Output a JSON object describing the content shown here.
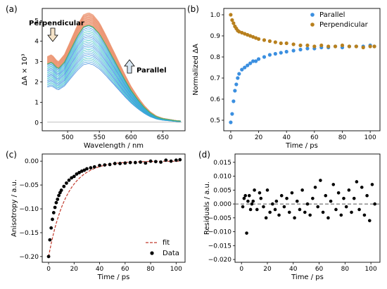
{
  "chart_data": [
    {
      "panel": "(a)",
      "type": "line",
      "xlabel": "Wavelength / nm",
      "ylabel": "ΔA × 10³",
      "xlim": [
        460,
        685
      ],
      "ylim": [
        -0.4,
        5.6
      ],
      "xticks": [
        500,
        550,
        600,
        650
      ],
      "yticks": [
        0,
        1,
        2,
        3,
        4,
        5
      ],
      "peak_wavelength": 533,
      "spectrum_wavelengths": [
        468,
        475,
        485,
        495,
        505,
        515,
        525,
        533,
        540,
        550,
        560,
        570,
        580,
        590,
        600,
        610,
        620,
        630,
        640,
        650,
        660,
        670,
        680
      ],
      "spectrum_shape": [
        0.6,
        0.62,
        0.55,
        0.62,
        0.75,
        0.88,
        0.98,
        1.0,
        0.98,
        0.91,
        0.8,
        0.68,
        0.56,
        0.44,
        0.33,
        0.24,
        0.16,
        0.1,
        0.06,
        0.04,
        0.03,
        0.02,
        0.015
      ],
      "series": [
        {
          "name": "Perpendicular",
          "color": "#E07A2B",
          "peak_start": 5.4,
          "peak_end": 4.8
        },
        {
          "name": "Parallel",
          "color": "#3B8FE0",
          "peak_start": 2.9,
          "peak_end": 4.75
        }
      ],
      "annotations": [
        "Perpendicular",
        "Parallel"
      ]
    },
    {
      "panel": "(b)",
      "type": "scatter",
      "xlabel": "Time / ps",
      "ylabel": "Normalized ΔA",
      "xlim": [
        -5,
        107
      ],
      "ylim": [
        0.45,
        1.03
      ],
      "xticks": [
        0,
        20,
        40,
        60,
        80,
        100
      ],
      "yticks": [
        0.5,
        0.6,
        0.7,
        0.8,
        0.9,
        1.0
      ],
      "legend_position": "top-right",
      "x": [
        0,
        1,
        2,
        3,
        4,
        5,
        6,
        8,
        10,
        12,
        14,
        16,
        18,
        20,
        24,
        28,
        32,
        36,
        40,
        45,
        50,
        55,
        60,
        65,
        70,
        75,
        80,
        85,
        90,
        95,
        100,
        103
      ],
      "series": [
        {
          "name": "Parallel",
          "color": "#3B8FE0",
          "values": [
            0.49,
            0.53,
            0.59,
            0.64,
            0.67,
            0.7,
            0.72,
            0.74,
            0.75,
            0.76,
            0.77,
            0.78,
            0.78,
            0.79,
            0.8,
            0.81,
            0.815,
            0.82,
            0.825,
            0.83,
            0.835,
            0.84,
            0.84,
            0.845,
            0.845,
            0.85,
            0.845,
            0.85,
            0.85,
            0.85,
            0.855,
            0.85
          ]
        },
        {
          "name": "Perpendicular",
          "color": "#B8801E",
          "values": [
            1.0,
            0.975,
            0.96,
            0.945,
            0.935,
            0.925,
            0.92,
            0.915,
            0.91,
            0.905,
            0.9,
            0.895,
            0.89,
            0.885,
            0.88,
            0.875,
            0.87,
            0.865,
            0.865,
            0.86,
            0.855,
            0.855,
            0.85,
            0.855,
            0.85,
            0.85,
            0.855,
            0.85,
            0.85,
            0.845,
            0.85,
            0.85
          ]
        }
      ]
    },
    {
      "panel": "(c)",
      "type": "scatter",
      "xlabel": "Time / ps",
      "ylabel": "Anisotropy / a.u.",
      "xlim": [
        -5,
        107
      ],
      "ylim": [
        -0.212,
        0.015
      ],
      "xticks": [
        0,
        20,
        40,
        60,
        80,
        100
      ],
      "yticks": [
        -0.2,
        -0.15,
        -0.1,
        -0.05,
        0.0
      ],
      "legend_position": "bottom-right",
      "x": [
        0,
        1,
        2,
        3,
        4,
        5,
        6,
        7,
        8,
        9,
        10,
        12,
        14,
        16,
        18,
        20,
        22,
        24,
        26,
        28,
        30,
        33,
        36,
        40,
        44,
        48,
        52,
        56,
        60,
        64,
        68,
        72,
        76,
        80,
        84,
        88,
        92,
        96,
        100,
        103
      ],
      "series": [
        {
          "name": "Data",
          "color": "#000000",
          "values": [
            -0.2,
            -0.165,
            -0.14,
            -0.122,
            -0.108,
            -0.097,
            -0.087,
            -0.08,
            -0.072,
            -0.066,
            -0.061,
            -0.053,
            -0.046,
            -0.04,
            -0.035,
            -0.032,
            -0.027,
            -0.024,
            -0.021,
            -0.019,
            -0.016,
            -0.014,
            -0.012,
            -0.009,
            -0.008,
            -0.007,
            -0.005,
            -0.005,
            -0.004,
            -0.003,
            -0.003,
            -0.002,
            -0.004,
            0.0,
            -0.001,
            -0.002,
            0.002,
            0.0,
            0.002,
            0.003
          ]
        },
        {
          "name": "fit",
          "color": "#C0392B",
          "style": "dashed",
          "amplitude": -0.2,
          "tau_ps": 14
        }
      ]
    },
    {
      "panel": "(d)",
      "type": "scatter",
      "xlabel": "Time / ps",
      "ylabel": "Residuals / a.u.",
      "xlim": [
        -5,
        107
      ],
      "ylim": [
        -0.021,
        0.018
      ],
      "xticks": [
        0,
        20,
        40,
        60,
        80,
        100
      ],
      "yticks": [
        -0.02,
        -0.015,
        -0.01,
        -0.005,
        0.0,
        0.005,
        0.01,
        0.015
      ],
      "reference_line": 0.0,
      "x": [
        1,
        2,
        3,
        4,
        5,
        6,
        7,
        8,
        9,
        10,
        12,
        14,
        15,
        17,
        19,
        20,
        22,
        24,
        26,
        27,
        29,
        31,
        33,
        35,
        37,
        39,
        41,
        43,
        45,
        47,
        49,
        51,
        53,
        55,
        57,
        59,
        61,
        63,
        65,
        67,
        69,
        71,
        73,
        75,
        77,
        79,
        81,
        83,
        85,
        87,
        89,
        91,
        93,
        95,
        97,
        99,
        101,
        103
      ],
      "series": [
        {
          "name": "Residuals",
          "color": "#000000",
          "values": [
            -0.001,
            0.002,
            0.003,
            -0.0105,
            0.001,
            0.003,
            -0.002,
            0.0,
            0.001,
            0.005,
            -0.002,
            0.004,
            0.002,
            -0.001,
            -0.005,
            0.005,
            -0.003,
            0.0,
            -0.002,
            0.001,
            -0.004,
            0.003,
            -0.001,
            0.002,
            -0.003,
            0.004,
            -0.005,
            0.001,
            -0.002,
            0.005,
            -0.003,
            0.0,
            -0.004,
            0.002,
            0.006,
            -0.001,
            0.0085,
            -0.003,
            0.003,
            -0.005,
            0.001,
            0.007,
            -0.002,
            0.004,
            -0.004,
            0.002,
            -0.001,
            0.005,
            -0.003,
            0.002,
            0.008,
            -0.002,
            0.006,
            -0.004,
            0.003,
            -0.006,
            0.007,
            0.0
          ]
        }
      ]
    }
  ]
}
